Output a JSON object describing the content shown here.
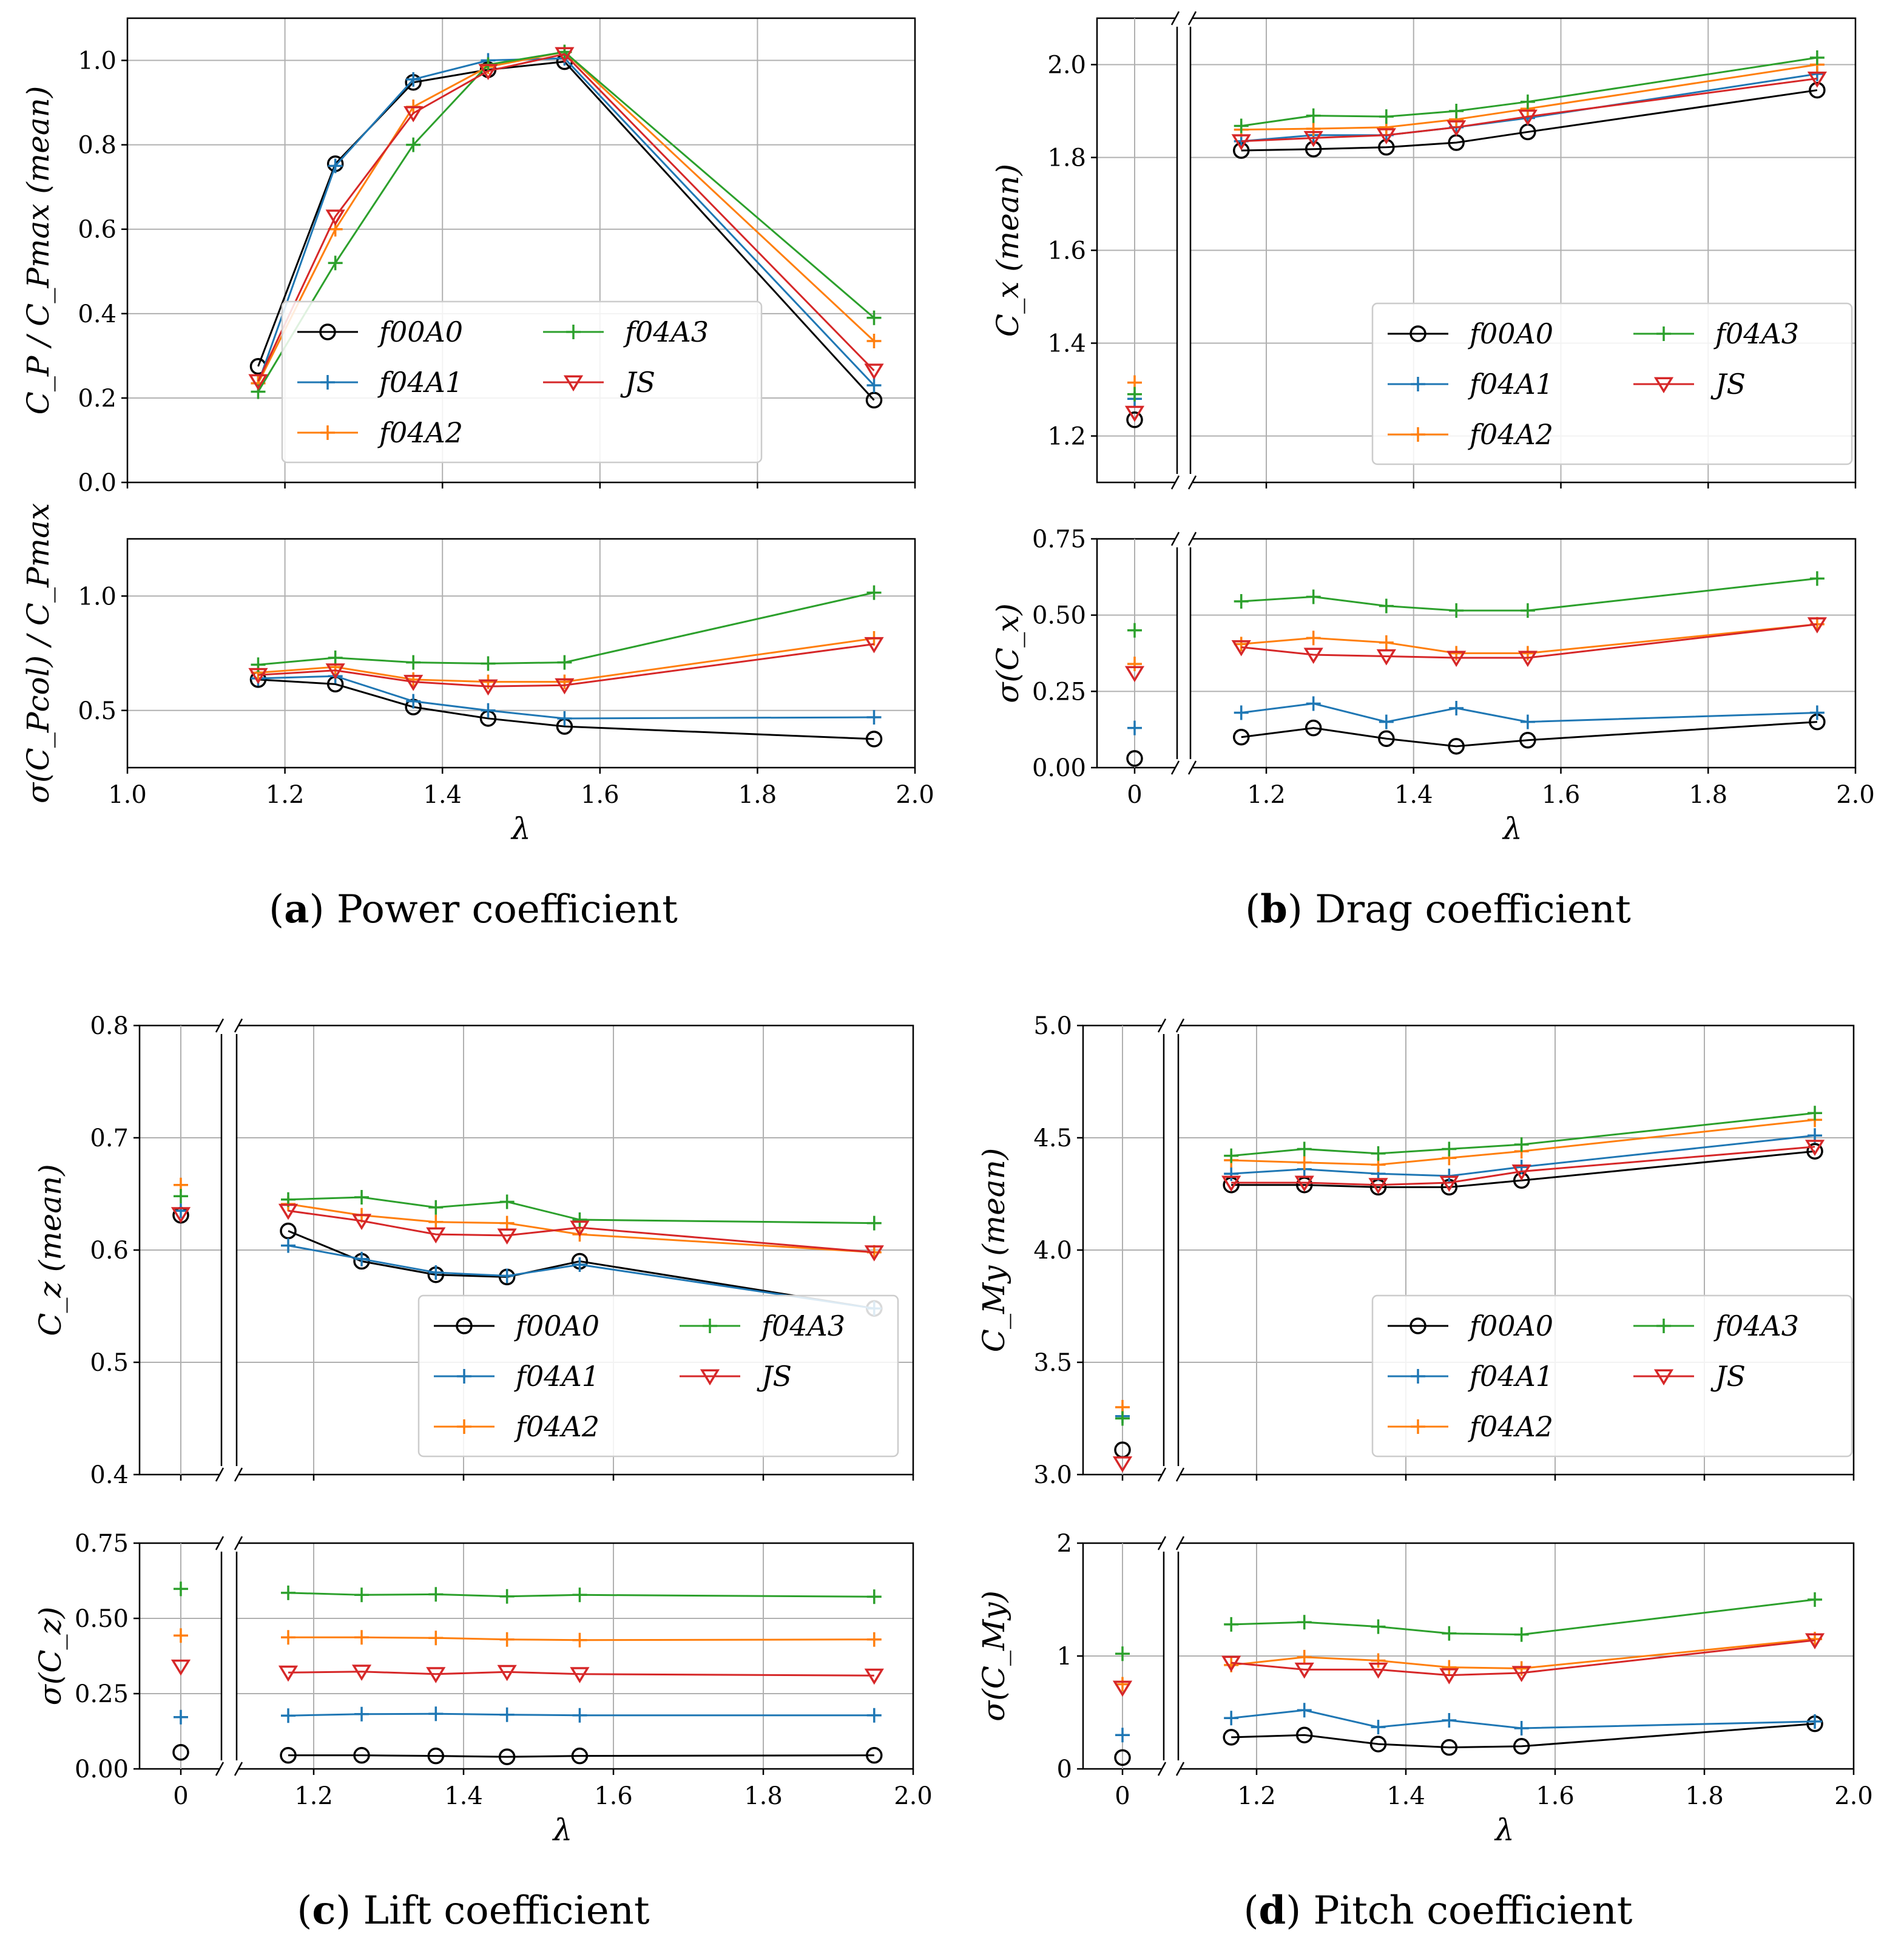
{
  "figure": {
    "captions": [
      {
        "letter": "a",
        "text": " Power coefficient"
      },
      {
        "letter": "b",
        "text": " Drag coefficient"
      },
      {
        "letter": "c",
        "text": " Lift coefficient"
      },
      {
        "letter": "d",
        "text": " Pitch coefficient"
      }
    ]
  },
  "series_styles": [
    {
      "name": "f00A0",
      "color": "#000000",
      "marker": "circle"
    },
    {
      "name": "f04A1",
      "color": "#1f77b4",
      "marker": "plus"
    },
    {
      "name": "f04A2",
      "color": "#ff7f0e",
      "marker": "plus"
    },
    {
      "name": "f04A3",
      "color": "#2ca02c",
      "marker": "plus"
    },
    {
      "name": "JS",
      "color": "#d62728",
      "marker": "triangle-down"
    }
  ],
  "chart_data": [
    {
      "id": "a-top",
      "panel": "a",
      "type": "line",
      "ylabel": "C_P / C_Pmax (mean)",
      "xlabel": "",
      "xlim": [
        1.0,
        2.0
      ],
      "ylim": [
        0.0,
        1.1
      ],
      "broken_axis": false,
      "xticks": [
        "1.0",
        "1.2",
        "1.4",
        "1.6",
        "1.8",
        "2.0"
      ],
      "show_xticklabels": false,
      "yticks": [
        0.0,
        0.2,
        0.4,
        0.6,
        0.8,
        1.0
      ],
      "ytick_labels": [
        "0.0",
        "0.2",
        "0.4",
        "0.6",
        "0.8",
        "1.0"
      ],
      "legend": "lower-center",
      "x": [
        1.166,
        1.264,
        1.363,
        1.458,
        1.555,
        1.948
      ],
      "series": [
        {
          "name": "f00A0",
          "values": [
            0.275,
            0.755,
            0.948,
            0.978,
            0.997,
            0.195
          ]
        },
        {
          "name": "f04A1",
          "values": [
            0.235,
            0.75,
            0.955,
            1.0,
            1.005,
            0.23
          ]
        },
        {
          "name": "f04A2",
          "values": [
            0.235,
            0.6,
            0.89,
            0.985,
            1.02,
            0.335
          ]
        },
        {
          "name": "f04A3",
          "values": [
            0.215,
            0.52,
            0.8,
            0.99,
            1.02,
            0.39
          ]
        },
        {
          "name": "JS",
          "values": [
            0.24,
            0.63,
            0.875,
            0.975,
            1.015,
            0.265
          ]
        }
      ]
    },
    {
      "id": "a-bottom",
      "panel": "a",
      "type": "line",
      "ylabel": "σ(C_Pcol) / C_Pmax",
      "xlabel": "λ",
      "xlim": [
        1.0,
        2.0
      ],
      "ylim": [
        0.25,
        1.25
      ],
      "broken_axis": false,
      "xticks": [
        "1.0",
        "1.2",
        "1.4",
        "1.6",
        "1.8",
        "2.0"
      ],
      "show_xticklabels": true,
      "yticks": [
        0.5,
        1.0
      ],
      "ytick_labels": [
        "0.5",
        "1.0"
      ],
      "legend": "none",
      "x": [
        1.166,
        1.264,
        1.363,
        1.458,
        1.555,
        1.948
      ],
      "series": [
        {
          "name": "f00A0",
          "values": [
            0.635,
            0.615,
            0.515,
            0.465,
            0.43,
            0.375
          ]
        },
        {
          "name": "f04A1",
          "values": [
            0.64,
            0.65,
            0.54,
            0.5,
            0.465,
            0.47
          ]
        },
        {
          "name": "f04A2",
          "values": [
            0.665,
            0.69,
            0.635,
            0.625,
            0.625,
            0.815
          ]
        },
        {
          "name": "f04A3",
          "values": [
            0.7,
            0.73,
            0.71,
            0.705,
            0.71,
            1.015
          ]
        },
        {
          "name": "JS",
          "values": [
            0.655,
            0.675,
            0.625,
            0.605,
            0.61,
            0.79
          ]
        }
      ]
    },
    {
      "id": "b-top",
      "panel": "b",
      "type": "line",
      "ylabel": "C_x (mean)",
      "xlabel": "",
      "xlim": [
        1.0,
        2.0
      ],
      "ylim": [
        1.1,
        2.1
      ],
      "broken_axis": true,
      "zero_x": 0,
      "xticks": [
        "1.2",
        "1.4",
        "1.6",
        "1.8",
        "2.0"
      ],
      "show_xticklabels": false,
      "yticks": [
        1.2,
        1.4,
        1.6,
        1.8,
        2.0
      ],
      "ytick_labels": [
        "1.2",
        "1.4",
        "1.6",
        "1.8",
        "2.0"
      ],
      "legend": "lower-right",
      "x": [
        1.166,
        1.264,
        1.363,
        1.458,
        1.555,
        1.948
      ],
      "series": [
        {
          "name": "f00A0",
          "values": [
            1.815,
            1.818,
            1.822,
            1.832,
            1.855,
            1.945
          ],
          "zero_value": 1.235
        },
        {
          "name": "f04A1",
          "values": [
            1.835,
            1.848,
            1.848,
            1.865,
            1.885,
            1.98
          ],
          "zero_value": 1.28
        },
        {
          "name": "f04A2",
          "values": [
            1.86,
            1.862,
            1.865,
            1.882,
            1.905,
            2.0
          ],
          "zero_value": 1.315
        },
        {
          "name": "f04A3",
          "values": [
            1.868,
            1.89,
            1.888,
            1.9,
            1.92,
            2.015
          ],
          "zero_value": 1.29
        },
        {
          "name": "JS",
          "values": [
            1.835,
            1.842,
            1.848,
            1.865,
            1.888,
            1.97
          ],
          "zero_value": 1.25
        }
      ]
    },
    {
      "id": "b-bottom",
      "panel": "b",
      "type": "line",
      "ylabel": "σ(C_x)",
      "xlabel": "λ",
      "xlim": [
        1.0,
        2.0
      ],
      "ylim": [
        0.0,
        0.75
      ],
      "broken_axis": true,
      "zero_x": 0,
      "xticks": [
        "1.2",
        "1.4",
        "1.6",
        "1.8",
        "2.0"
      ],
      "show_xticklabels": true,
      "yticks": [
        0.0,
        0.25,
        0.5,
        0.75
      ],
      "ytick_labels": [
        "0.00",
        "0.25",
        "0.50",
        "0.75"
      ],
      "legend": "none",
      "x": [
        1.166,
        1.264,
        1.363,
        1.458,
        1.555,
        1.948
      ],
      "series": [
        {
          "name": "f00A0",
          "values": [
            0.1,
            0.13,
            0.095,
            0.07,
            0.09,
            0.15
          ],
          "zero_value": 0.03
        },
        {
          "name": "f04A1",
          "values": [
            0.18,
            0.21,
            0.15,
            0.195,
            0.15,
            0.18
          ],
          "zero_value": 0.13
        },
        {
          "name": "f04A2",
          "values": [
            0.405,
            0.425,
            0.41,
            0.375,
            0.375,
            0.47
          ],
          "zero_value": 0.34
        },
        {
          "name": "f04A3",
          "values": [
            0.545,
            0.56,
            0.53,
            0.515,
            0.515,
            0.62
          ],
          "zero_value": 0.45
        },
        {
          "name": "JS",
          "values": [
            0.395,
            0.37,
            0.365,
            0.36,
            0.36,
            0.47
          ],
          "zero_value": 0.31
        }
      ]
    },
    {
      "id": "c-top",
      "panel": "c",
      "type": "line",
      "ylabel": "C_z (mean)",
      "xlabel": "",
      "xlim": [
        1.0,
        2.0
      ],
      "ylim": [
        0.4,
        0.8
      ],
      "broken_axis": true,
      "zero_x": 0,
      "xticks": [
        "1.2",
        "1.4",
        "1.6",
        "1.8",
        "2.0"
      ],
      "show_xticklabels": false,
      "yticks": [
        0.4,
        0.5,
        0.6,
        0.7,
        0.8
      ],
      "ytick_labels": [
        "0.4",
        "0.5",
        "0.6",
        "0.7",
        "0.8"
      ],
      "legend": "lower-right",
      "x": [
        1.166,
        1.264,
        1.363,
        1.458,
        1.555,
        1.948
      ],
      "series": [
        {
          "name": "f00A0",
          "values": [
            0.617,
            0.59,
            0.578,
            0.576,
            0.59,
            0.548
          ],
          "zero_value": 0.631
        },
        {
          "name": "f04A1",
          "values": [
            0.604,
            0.592,
            0.58,
            0.577,
            0.587,
            0.548
          ],
          "zero_value": 0.635
        },
        {
          "name": "f04A2",
          "values": [
            0.641,
            0.631,
            0.625,
            0.624,
            0.614,
            0.598
          ],
          "zero_value": 0.658
        },
        {
          "name": "f04A3",
          "values": [
            0.645,
            0.647,
            0.638,
            0.643,
            0.627,
            0.624
          ],
          "zero_value": 0.648
        },
        {
          "name": "JS",
          "values": [
            0.635,
            0.626,
            0.614,
            0.613,
            0.62,
            0.598
          ],
          "zero_value": 0.632
        }
      ]
    },
    {
      "id": "c-bottom",
      "panel": "c",
      "type": "line",
      "ylabel": "σ(C_z)",
      "xlabel": "λ",
      "xlim": [
        1.0,
        2.0
      ],
      "ylim": [
        0.0,
        0.75
      ],
      "broken_axis": true,
      "zero_x": 0,
      "xticks": [
        "1.2",
        "1.4",
        "1.6",
        "1.8",
        "2.0"
      ],
      "show_xticklabels": true,
      "yticks": [
        0.0,
        0.25,
        0.5,
        0.75
      ],
      "ytick_labels": [
        "0.00",
        "0.25",
        "0.50",
        "0.75"
      ],
      "legend": "none",
      "x": [
        1.166,
        1.264,
        1.363,
        1.458,
        1.555,
        1.948
      ],
      "series": [
        {
          "name": "f00A0",
          "values": [
            0.045,
            0.045,
            0.043,
            0.04,
            0.043,
            0.045
          ],
          "zero_value": 0.055
        },
        {
          "name": "f04A1",
          "values": [
            0.177,
            0.182,
            0.183,
            0.18,
            0.178,
            0.178
          ],
          "zero_value": 0.172
        },
        {
          "name": "f04A2",
          "values": [
            0.437,
            0.437,
            0.435,
            0.43,
            0.428,
            0.43
          ],
          "zero_value": 0.443
        },
        {
          "name": "f04A3",
          "values": [
            0.585,
            0.578,
            0.58,
            0.573,
            0.578,
            0.572
          ],
          "zero_value": 0.598
        },
        {
          "name": "JS",
          "values": [
            0.32,
            0.323,
            0.315,
            0.322,
            0.315,
            0.31
          ],
          "zero_value": 0.34
        }
      ]
    },
    {
      "id": "d-top",
      "panel": "d",
      "type": "line",
      "ylabel": "C_My (mean)",
      "xlabel": "",
      "xlim": [
        1.0,
        2.0
      ],
      "ylim": [
        3.0,
        5.0
      ],
      "broken_axis": true,
      "zero_x": 0,
      "xticks": [
        "1.2",
        "1.4",
        "1.6",
        "1.8",
        "2.0"
      ],
      "show_xticklabels": false,
      "yticks": [
        3.0,
        3.5,
        4.0,
        4.5,
        5.0
      ],
      "ytick_labels": [
        "3.0",
        "3.5",
        "4.0",
        "4.5",
        "5.0"
      ],
      "legend": "lower-right",
      "x": [
        1.166,
        1.264,
        1.363,
        1.458,
        1.555,
        1.948
      ],
      "series": [
        {
          "name": "f00A0",
          "values": [
            4.29,
            4.29,
            4.28,
            4.28,
            4.31,
            4.44
          ],
          "zero_value": 3.11
        },
        {
          "name": "f04A1",
          "values": [
            4.34,
            4.36,
            4.34,
            4.33,
            4.37,
            4.51
          ],
          "zero_value": 3.26
        },
        {
          "name": "f04A2",
          "values": [
            4.4,
            4.39,
            4.38,
            4.41,
            4.44,
            4.58
          ],
          "zero_value": 3.3
        },
        {
          "name": "f04A3",
          "values": [
            4.42,
            4.45,
            4.43,
            4.45,
            4.47,
            4.61
          ],
          "zero_value": 3.25
        },
        {
          "name": "JS",
          "values": [
            4.3,
            4.3,
            4.29,
            4.3,
            4.35,
            4.46
          ],
          "zero_value": 3.05
        }
      ]
    },
    {
      "id": "d-bottom",
      "panel": "d",
      "type": "line",
      "ylabel": "σ(C_My)",
      "xlabel": "λ",
      "xlim": [
        1.0,
        2.0
      ],
      "ylim": [
        0.0,
        2.0
      ],
      "broken_axis": true,
      "zero_x": 0,
      "xticks": [
        "1.2",
        "1.4",
        "1.6",
        "1.8",
        "2.0"
      ],
      "show_xticklabels": true,
      "yticks": [
        0,
        1,
        2
      ],
      "ytick_labels": [
        "0",
        "1",
        "2"
      ],
      "legend": "none",
      "x": [
        1.166,
        1.264,
        1.363,
        1.458,
        1.555,
        1.948
      ],
      "series": [
        {
          "name": "f00A0",
          "values": [
            0.28,
            0.3,
            0.22,
            0.19,
            0.2,
            0.4
          ],
          "zero_value": 0.1
        },
        {
          "name": "f04A1",
          "values": [
            0.45,
            0.52,
            0.37,
            0.43,
            0.36,
            0.42
          ],
          "zero_value": 0.3
        },
        {
          "name": "f04A2",
          "values": [
            0.92,
            0.99,
            0.96,
            0.9,
            0.89,
            1.15
          ],
          "zero_value": 0.75
        },
        {
          "name": "f04A3",
          "values": [
            1.28,
            1.3,
            1.26,
            1.2,
            1.19,
            1.5
          ],
          "zero_value": 1.02
        },
        {
          "name": "JS",
          "values": [
            0.94,
            0.88,
            0.88,
            0.83,
            0.85,
            1.14
          ],
          "zero_value": 0.72
        }
      ]
    }
  ]
}
